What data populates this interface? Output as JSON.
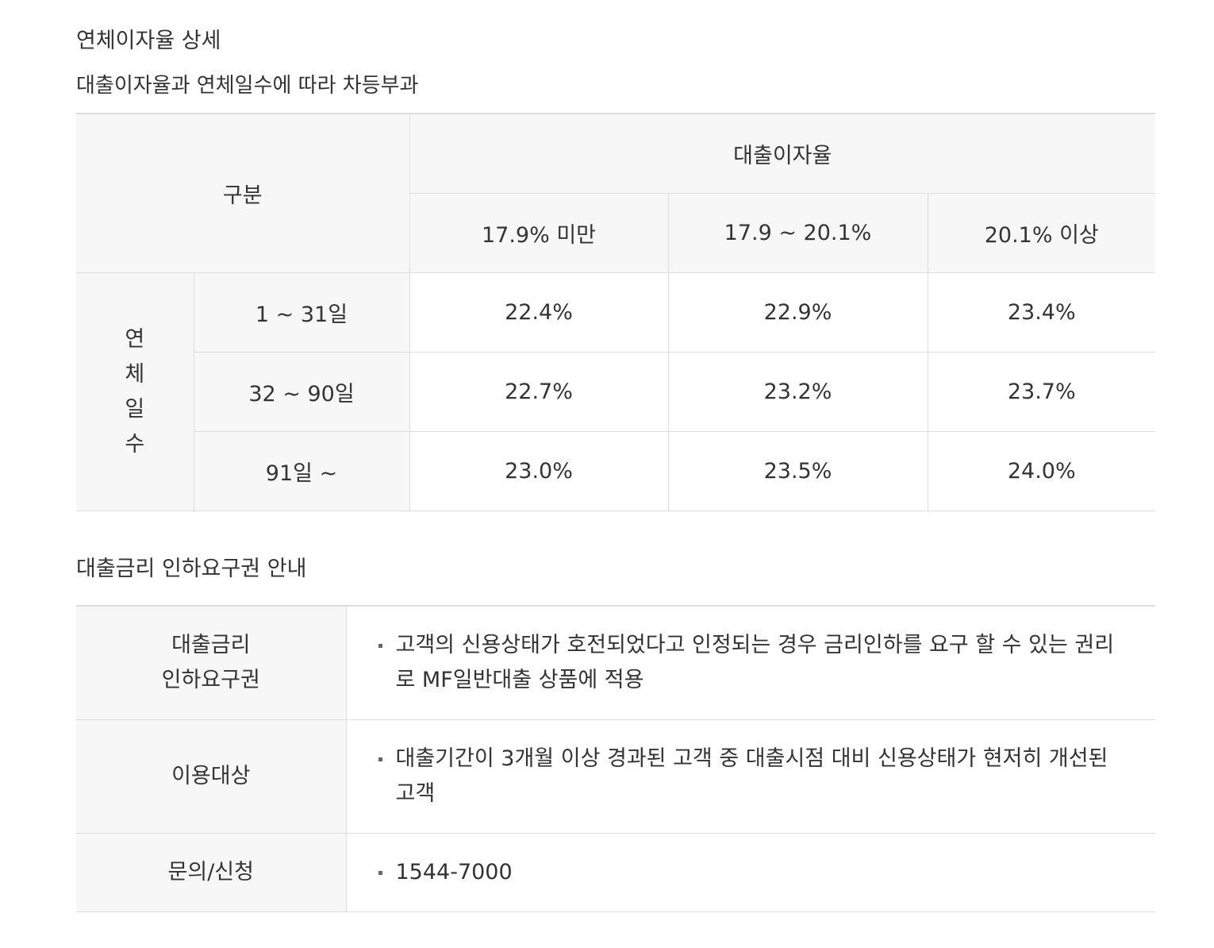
{
  "overdue_section": {
    "title": "연체이자율 상세",
    "subtitle": "대출이자율과 연체일수에 따라 차등부과",
    "table": {
      "category_header": "구분",
      "rate_group_header": "대출이자율",
      "rate_columns": [
        "17.9% 미만",
        "17.9 ~ 20.1%",
        "20.1% 이상"
      ],
      "row_group_label": "연체일수",
      "rows": [
        {
          "days": "1 ~ 31일",
          "values": [
            "22.4%",
            "22.9%",
            "23.4%"
          ]
        },
        {
          "days": "32 ~ 90일",
          "values": [
            "22.7%",
            "23.2%",
            "23.7%"
          ]
        },
        {
          "days": "91일 ~",
          "values": [
            "23.0%",
            "23.5%",
            "24.0%"
          ]
        }
      ]
    }
  },
  "rate_cut_section": {
    "title": "대출금리 인하요구권 안내",
    "rows": [
      {
        "header_lines": [
          "대출금리",
          "인하요구권"
        ],
        "content": "고객의 신용상태가 호전되었다고 인정되는 경우 금리인하를 요구 할 수 있는 권리로 MF일반대출 상품에 적용"
      },
      {
        "header_lines": [
          "이용대상"
        ],
        "content": "대출기간이 3개월 이상 경과된 고객 중 대출시점 대비 신용상태가 현저히 개선된 고객"
      },
      {
        "header_lines": [
          "문의/신청"
        ],
        "content": "1544-7000"
      }
    ]
  },
  "icons": {
    "bullet": "square-bullet-icon"
  },
  "colors": {
    "header_bg": "#f7f7f7",
    "border": "#dcdcdc",
    "text": "#333333"
  }
}
